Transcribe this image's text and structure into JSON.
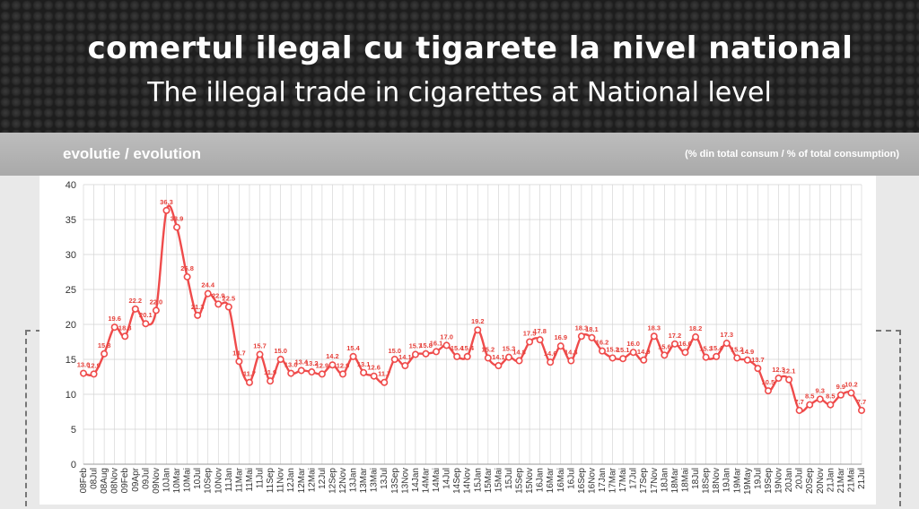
{
  "header": {
    "title_ro": "comertul ilegal cu tigarete la nivel national",
    "title_en": "The illegal trade in cigarettes at National level"
  },
  "subheader": {
    "left": "evolutie / evolution",
    "right": "(% din total consum / % of total consumption)"
  },
  "colors": {
    "line": "#ef4b4b",
    "label": "#e5413b",
    "grid": "#d0d0d0"
  },
  "chart_data": {
    "type": "line",
    "ylim": [
      0,
      40
    ],
    "yticks": [
      0,
      5,
      10,
      15,
      20,
      25,
      30,
      35,
      40
    ],
    "grid": true,
    "categories": [
      "08Feb",
      "08Jul",
      "08Aug",
      "08Nov",
      "09Feb",
      "09Apr",
      "09Jul",
      "09Nov",
      "10Jan",
      "10Mar",
      "10Mai",
      "10Jul",
      "10Sep",
      "10Nov",
      "11Jan",
      "11Mar",
      "11Mai",
      "11Jul",
      "11Sep",
      "11Nov",
      "12Jan",
      "12Mar",
      "12Mai",
      "12Jul",
      "12Sep",
      "12Nov",
      "13Jan",
      "13Mar",
      "13Mai",
      "13Jul",
      "13Sep",
      "13Nov",
      "14Jan",
      "14Mar",
      "14Mai",
      "14Jul",
      "14Sep",
      "14Nov",
      "15Jan",
      "15Mar",
      "15Mai",
      "15Jul",
      "15Sep",
      "15Nov",
      "16Jan",
      "16Mar",
      "16Mai",
      "16Jul",
      "16Sep",
      "16Nov",
      "17Jan",
      "17Mar",
      "17Mai",
      "17Jul",
      "17Sep",
      "17Nov",
      "18Jan",
      "18Mar",
      "18Mai",
      "18Jul",
      "18Sep",
      "18Nov",
      "19Jan",
      "19Mar",
      "19May",
      "19Jul",
      "19Sep",
      "19Nov",
      "20Jan",
      "20Jul",
      "20Sep",
      "20Nov",
      "21Jan",
      "21Mar",
      "21Mai",
      "21Jul"
    ],
    "point_labels_x": [
      "08Feb",
      "08Jul",
      "08Aug",
      "08Nov",
      "09Feb",
      "09Apr",
      "09Jul",
      "09Nov",
      "10Jan",
      "10Mar",
      "10Mai",
      "10Jul",
      "10Sep",
      "10Nov",
      "11Jan",
      "11Mar",
      "11Mai",
      "11Jul",
      "11Sep",
      "11Nov",
      "12Jan",
      "12Mar",
      "12Mai",
      "12Jul",
      "12Sep",
      "12Nov",
      "13Jan",
      "13Mar",
      "13Mai",
      "13Jul",
      "13Sep",
      "13Nov",
      "14Jan",
      "14Mar",
      "14Mai",
      "14Jul",
      "14Sep",
      "14Nov",
      "15Jan",
      "15Mar",
      "15Mai",
      "15Jul",
      "15Sep",
      "15Nov",
      "16Jan",
      "16Mar",
      "16Mai",
      "16Jul",
      "16Sep",
      "16Nov",
      "17Jan",
      "17Mar",
      "17Mai",
      "17Jul",
      "17Sep",
      "17Nov",
      "18Jan",
      "18Mar",
      "18Mai",
      "18Jul",
      "18Sep",
      "18Nov",
      "19Jan",
      "19Mar",
      "19May",
      "19Jul",
      "19Sep",
      "19Nov",
      "20Jan",
      "20Jul",
      "20Sep",
      "20Nov",
      "21Jan",
      "21Mar",
      "21Mai",
      "21Jul"
    ],
    "values": [
      13.0,
      12.9,
      15.8,
      19.6,
      18.3,
      22.2,
      20.1,
      22.0,
      36.3,
      33.9,
      26.8,
      21.3,
      24.4,
      22.9,
      22.5,
      14.7,
      11.7,
      15.7,
      11.9,
      15.0,
      13.0,
      13.4,
      13.2,
      12.9,
      14.2,
      12.9,
      15.4,
      13.1,
      12.6,
      11.7,
      15.0,
      14.1,
      15.7,
      15.8,
      16.1,
      17.0,
      15.4,
      15.4,
      19.2,
      15.2,
      14.1,
      15.3,
      14.8,
      17.5,
      17.8,
      14.6,
      16.9,
      14.8,
      18.3,
      18.1,
      16.2,
      15.2,
      15.1,
      16.0,
      14.9,
      18.3,
      15.6,
      17.2,
      16.0,
      18.2,
      15.3,
      15.4,
      17.3,
      15.2,
      14.9,
      13.7,
      10.5,
      12.3,
      12.1,
      7.7,
      8.5,
      9.3,
      8.5,
      9.9,
      10.2,
      7.7
    ],
    "data_labels": [
      "13.0",
      "12.9",
      "15.8",
      "19.6",
      "18.3",
      "22.2",
      "20.1",
      "22.0",
      "36.3",
      "33.9",
      "26.8",
      "21.3",
      "24.4",
      "22.9",
      "22.5",
      "14.7",
      "11.7",
      "15.7",
      "11.9",
      "15.0",
      "13.0",
      "13.4",
      "13.2",
      "12.9",
      "14.2",
      "12.9",
      "15.4",
      "13.1",
      "12.6",
      "11.7",
      "15.0",
      "14.1",
      "15.7",
      "15.8",
      "16.1",
      "17.0",
      "15.4",
      "15.4",
      "19.2",
      "15.2",
      "14.1",
      "15.3",
      "14.8",
      "17.5",
      "17.8",
      "14.6",
      "16.9",
      "14.8",
      "18.3",
      "18.1",
      "16.2",
      "15.2",
      "15.1",
      "16.0",
      "14.9",
      "18.3",
      "15.6",
      "17.2",
      "16.0",
      "18.2",
      "15.3",
      "15.4",
      "17.3",
      "15.2",
      "14.9",
      "13.7",
      "10.5",
      "12.3",
      "12.1",
      "7.7",
      "8.5",
      "9.3",
      "8.5",
      "9.9",
      "10.2",
      "7.7"
    ]
  }
}
